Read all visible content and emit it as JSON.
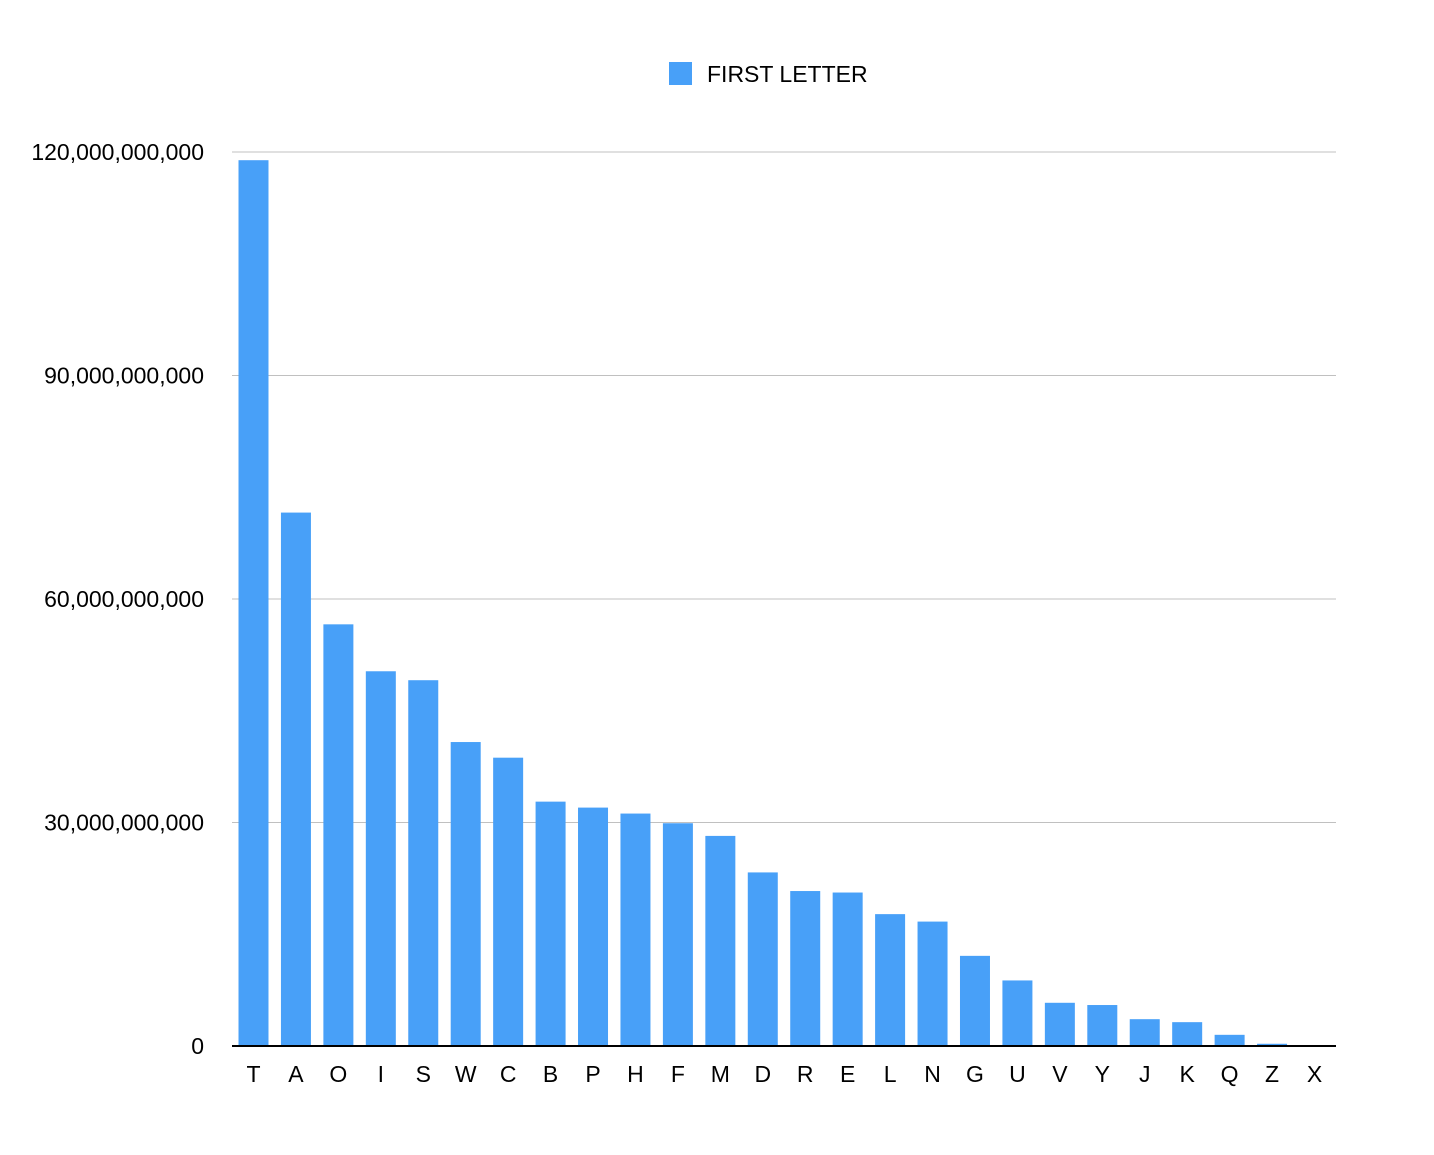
{
  "chart_data": {
    "type": "bar",
    "categories": [
      "T",
      "A",
      "O",
      "I",
      "S",
      "W",
      "C",
      "B",
      "P",
      "H",
      "F",
      "M",
      "D",
      "R",
      "E",
      "L",
      "N",
      "G",
      "U",
      "V",
      "Y",
      "J",
      "K",
      "Q",
      "Z",
      "X"
    ],
    "series": [
      {
        "name": "FIRST LETTER",
        "color": "#48a0f8",
        "values": [
          118900000000,
          71600000000,
          56600000000,
          50300000000,
          49100000000,
          40800000000,
          38700000000,
          32800000000,
          32000000000,
          31200000000,
          29900000000,
          28200000000,
          23300000000,
          20800000000,
          20600000000,
          17700000000,
          16700000000,
          12100000000,
          8800000000,
          5800000000,
          5500000000,
          3600000000,
          3200000000,
          1500000000,
          300000000,
          90000000
        ]
      }
    ],
    "ylim": [
      0,
      120000000000
    ],
    "yticks": [
      0,
      30000000000,
      60000000000,
      90000000000,
      120000000000
    ],
    "ytick_labels": [
      "0",
      "30,000,000,000",
      "60,000,000,000",
      "90,000,000,000",
      "120,000,000,000"
    ],
    "grid": true,
    "legend_position": "top-center",
    "axis_color": "#000000",
    "grid_color": "#c0c0c0"
  }
}
